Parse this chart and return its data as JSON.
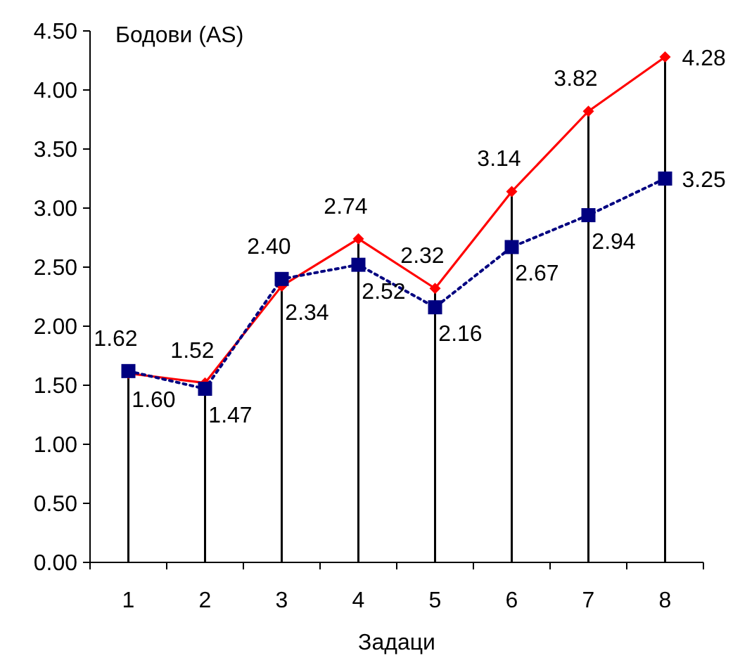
{
  "chart_data": {
    "type": "line",
    "ylabel": "Бодови (AS)",
    "xlabel": "Задаци",
    "categories": [
      "1",
      "2",
      "3",
      "4",
      "5",
      "6",
      "7",
      "8"
    ],
    "series": [
      {
        "color": "#ff0000",
        "marker": "diamond",
        "line_style": "solid",
        "values": [
          1.6,
          1.52,
          2.34,
          2.74,
          2.32,
          3.14,
          3.82,
          4.28
        ],
        "value_labels": [
          "1.60",
          "1.52",
          "2.34",
          "2.74",
          "2.32",
          "3.14",
          "3.82",
          "4.28"
        ]
      },
      {
        "color": "#000080",
        "marker": "square",
        "line_style": "dotted",
        "values": [
          1.62,
          1.47,
          2.4,
          2.52,
          2.16,
          2.67,
          2.94,
          3.25
        ],
        "value_labels": [
          "1.62",
          "1.47",
          "2.40",
          "2.52",
          "2.16",
          "2.67",
          "2.94",
          "3.25"
        ]
      }
    ],
    "ylim": [
      0,
      4.5
    ],
    "yticks": [
      {
        "value": 0,
        "label": "0.00"
      },
      {
        "value": 0.5,
        "label": "0.50"
      },
      {
        "value": 1,
        "label": "1.00"
      },
      {
        "value": 1.5,
        "label": "1.50"
      },
      {
        "value": 2,
        "label": "2.00"
      },
      {
        "value": 2.5,
        "label": "2.50"
      },
      {
        "value": 3,
        "label": "3.00"
      },
      {
        "value": 3.5,
        "label": "3.50"
      },
      {
        "value": 4,
        "label": "4.00"
      },
      {
        "value": 4.5,
        "label": "4.50"
      }
    ]
  }
}
